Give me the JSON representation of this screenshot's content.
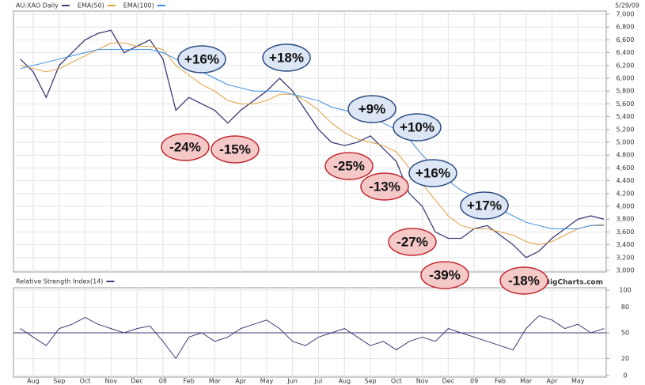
{
  "chart_data": [
    {
      "type": "line",
      "categories": [
        null,
        "Aug",
        null,
        "Sep",
        null,
        "Oct",
        null,
        "Nov",
        null,
        "Dec",
        null,
        "08",
        null,
        "Feb",
        null,
        "Mar",
        null,
        "Apr",
        null,
        "May",
        null,
        "Jun",
        null,
        "Jul",
        null,
        "Aug",
        null,
        "Sep",
        null,
        "Oct",
        null,
        "Nov",
        null,
        "Dec",
        null,
        "09",
        null,
        "Feb",
        null,
        "Mar",
        null,
        "Apr",
        null,
        "May",
        null,
        null
      ],
      "series": [
        {
          "name": "AU:XAO Daily",
          "color": "#3c3c78",
          "values": [
            6300,
            6100,
            5700,
            6200,
            6400,
            6600,
            6700,
            6750,
            6400,
            6500,
            6600,
            6300,
            5500,
            5700,
            5600,
            5500,
            5300,
            5500,
            5650,
            5800,
            6000,
            5800,
            5500,
            5200,
            5000,
            4950,
            5000,
            5100,
            4900,
            4700,
            4200,
            4000,
            3600,
            3500,
            3500,
            3650,
            3700,
            3550,
            3400,
            3200,
            3300,
            3500,
            3650,
            3800,
            3850,
            3800
          ]
        },
        {
          "name": "EMA(50)",
          "color": "#e0a040",
          "values": [
            6200,
            6150,
            6100,
            6150,
            6250,
            6350,
            6450,
            6550,
            6550,
            6500,
            6500,
            6450,
            6200,
            6050,
            5900,
            5800,
            5650,
            5600,
            5600,
            5650,
            5750,
            5750,
            5650,
            5500,
            5300,
            5150,
            5050,
            5000,
            4950,
            4850,
            4600,
            4350,
            4100,
            3850,
            3700,
            3650,
            3650,
            3600,
            3550,
            3450,
            3400,
            3450,
            3550,
            3650,
            3700,
            3720
          ]
        },
        {
          "name": "EMA(100)",
          "color": "#3a8ae0",
          "values": [
            6150,
            6200,
            6250,
            6300,
            6350,
            6400,
            6450,
            6450,
            6450,
            6450,
            6450,
            6400,
            6300,
            6200,
            6100,
            6000,
            5900,
            5850,
            5800,
            5800,
            5800,
            5750,
            5700,
            5650,
            5550,
            5500,
            5450,
            5400,
            5300,
            5200,
            5050,
            4800,
            4600,
            4400,
            4250,
            4150,
            4050,
            3950,
            3850,
            3750,
            3700,
            3650,
            3650,
            3650,
            3700,
            3700
          ]
        }
      ],
      "ylim": [
        3000,
        7000
      ],
      "yticks": [
        {
          "value": 3000,
          "label": "3,000"
        },
        {
          "value": 3200,
          "label": "3,200"
        },
        {
          "value": 3400,
          "label": "3,400"
        },
        {
          "value": 3600,
          "label": "3,600"
        },
        {
          "value": 3800,
          "label": "3,800"
        },
        {
          "value": 4000,
          "label": "4,000"
        },
        {
          "value": 4200,
          "label": "4,200"
        },
        {
          "value": 4400,
          "label": "4,400"
        },
        {
          "value": 4600,
          "label": "4,600"
        },
        {
          "value": 4800,
          "label": "4,800"
        },
        {
          "value": 5000,
          "label": "5,000"
        },
        {
          "value": 5200,
          "label": "5,200"
        },
        {
          "value": 5400,
          "label": "5,400"
        },
        {
          "value": 5600,
          "label": "5,600"
        },
        {
          "value": 5800,
          "label": "5,800"
        },
        {
          "value": 6000,
          "label": "6,000"
        },
        {
          "value": 6200,
          "label": "6,200"
        },
        {
          "value": 6400,
          "label": "6,400"
        },
        {
          "value": 6600,
          "label": "6,600"
        },
        {
          "value": 6800,
          "label": "6,800"
        },
        {
          "value": 7000,
          "label": "7,000"
        }
      ],
      "grid": true,
      "date": "5/29/09",
      "credit": "©BigCharts.com",
      "annotations": [
        "+16%",
        "+18%",
        "+9%",
        "+10%",
        "+16%",
        "+17%",
        "-24%",
        "-15%",
        "-25%",
        "-13%",
        "-27%",
        "-39%",
        "-18%"
      ]
    },
    {
      "type": "line",
      "series": [
        {
          "name": "Relative Strength Index(14)",
          "color": "#3c3c78",
          "values": [
            55,
            45,
            35,
            55,
            60,
            68,
            60,
            55,
            50,
            55,
            58,
            40,
            20,
            45,
            50,
            40,
            45,
            55,
            60,
            65,
            55,
            40,
            35,
            45,
            50,
            55,
            45,
            35,
            40,
            30,
            40,
            45,
            40,
            55,
            50,
            45,
            40,
            35,
            30,
            55,
            70,
            65,
            55,
            60,
            50,
            55
          ]
        }
      ],
      "ylim": [
        0,
        100
      ],
      "yticks": [
        0,
        20,
        50,
        80,
        100
      ],
      "reference_line": 50
    }
  ]
}
